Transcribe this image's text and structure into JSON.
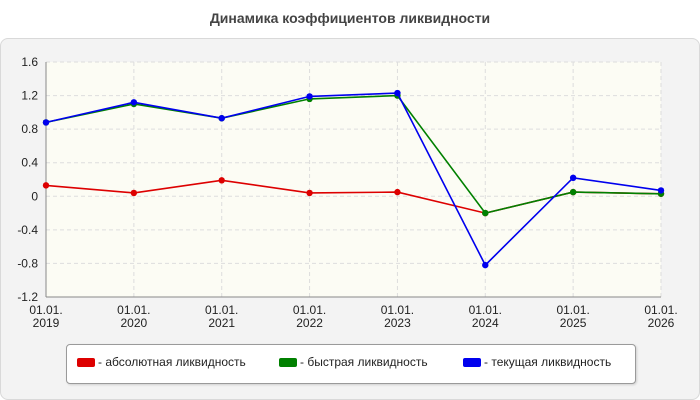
{
  "chart_data": {
    "type": "line",
    "title": "Динамика коэффициентов ликвидности",
    "x": [
      "01.01.\n2019",
      "01.01.\n2020",
      "01.01.\n2021",
      "01.01.\n2022",
      "01.01.\n2023",
      "01.01.\n2024",
      "01.01.\n2025",
      "01.01.\n2026"
    ],
    "ylim": [
      -1.2,
      1.6
    ],
    "yticks": [
      "1.6",
      "1.2",
      "0.8",
      "0.4",
      "0",
      "-0.4",
      "-0.8",
      "-1.2"
    ],
    "grid": true,
    "legend_position": "bottom",
    "series": [
      {
        "name": "- абсолютная ликвидность",
        "color": "#dd0000",
        "values": [
          0.13,
          0.04,
          0.19,
          0.04,
          0.05,
          -0.2,
          0.05,
          0.03
        ]
      },
      {
        "name": "- быстрая ликвидность",
        "color": "#008000",
        "values": [
          0.88,
          1.1,
          0.93,
          1.16,
          1.2,
          -0.2,
          0.05,
          0.03
        ]
      },
      {
        "name": "- текущая ликвидность",
        "color": "#0000ee",
        "values": [
          0.88,
          1.12,
          0.93,
          1.19,
          1.23,
          -0.82,
          0.22,
          0.07
        ]
      }
    ]
  }
}
